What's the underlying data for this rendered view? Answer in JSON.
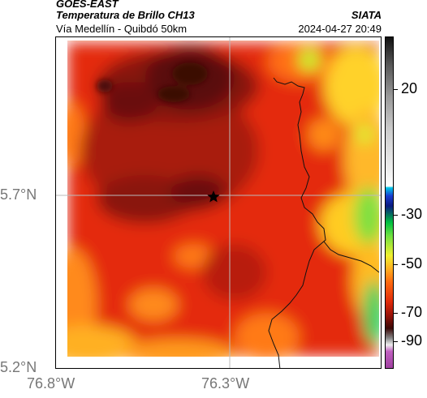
{
  "header": {
    "satellite": "GOES-EAST",
    "product": "Temperatura de Brillo CH13",
    "organization": "SIATA",
    "subtitle": "Vía Medellín - Quibdó 50km",
    "datetime": "2024-04-27 20:49"
  },
  "axes": {
    "x_ticks": [
      "76.8°W",
      "76.3°W"
    ],
    "y_ticks": [
      "5.7°N",
      "5.2°N"
    ]
  },
  "colorbar": {
    "ticks": [
      "20",
      "-30",
      "-50",
      "-70",
      "-90"
    ]
  },
  "colors": {
    "background_field": "#e0200a",
    "cold_core": "#5a0e08",
    "warm_edge": "#ffcc22"
  },
  "icons": {
    "marker": "star-icon"
  }
}
